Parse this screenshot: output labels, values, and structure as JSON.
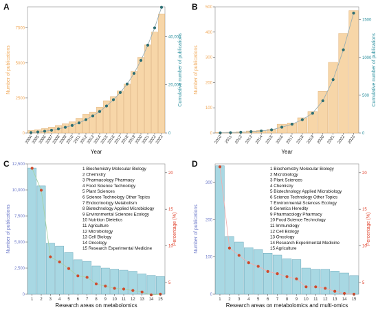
{
  "panels": [
    {
      "id": "A",
      "label": "A",
      "box": "top-left",
      "bar_color": "#f7d6a8",
      "bar_stroke": "#e0b27a",
      "line_color": "#9aaeb3",
      "point_color": "#2d6e73",
      "y_left_color": "#f0a858",
      "y_right_color": "#2a8f9e",
      "ylabel_left": "Number of publications",
      "ylabel_right": "Cumulative number of publications",
      "xlabel": "Year",
      "categories": [
        "2004",
        "2005",
        "2006",
        "2007",
        "2008",
        "2009",
        "2010",
        "2011",
        "2012",
        "2013",
        "2014",
        "2015",
        "2016",
        "2017",
        "2018",
        "2019",
        "2020",
        "2021",
        "2022",
        "2023"
      ],
      "ylim_left": [
        0,
        9000
      ],
      "ylim_right": [
        0,
        52300
      ],
      "yticks_left": [
        0,
        2500,
        5000,
        7500
      ],
      "ytick_labels_left": [
        "0",
        "2500",
        "5000",
        "7500"
      ],
      "yticks_right": [
        0,
        20000,
        40000
      ],
      "ytick_labels_right": [
        "0",
        "20,000",
        "40,000"
      ],
      "bars": [
        180,
        240,
        320,
        420,
        540,
        660,
        800,
        1050,
        1350,
        1500,
        1850,
        2300,
        2600,
        3000,
        3500,
        4400,
        5400,
        6300,
        7200,
        8500
      ],
      "cumulative": [
        180,
        420,
        740,
        1160,
        1700,
        2360,
        3160,
        4210,
        5560,
        7060,
        8910,
        11210,
        13810,
        16810,
        20310,
        24710,
        30110,
        36410,
        43610,
        52110
      ]
    },
    {
      "id": "B",
      "label": "B",
      "box": "top-right",
      "bar_color": "#f7d6a8",
      "bar_stroke": "#e0b27a",
      "line_color": "#9aaeb3",
      "point_color": "#2d6e73",
      "y_left_color": "#f0a858",
      "y_right_color": "#2a8f9e",
      "ylabel_left": "Number of publications",
      "ylabel_right": "Cumulative number of publications",
      "xlabel": "Year",
      "categories": [
        "2010",
        "2011",
        "2012",
        "2013",
        "2014",
        "2015",
        "2016",
        "2017",
        "2018",
        "2019",
        "2020",
        "2021",
        "2022",
        "2023"
      ],
      "ylim_left": [
        0,
        500
      ],
      "ylim_right": [
        0,
        1670
      ],
      "yticks_left": [
        0,
        100,
        200,
        300,
        400,
        500
      ],
      "ytick_labels_left": [
        "0",
        "100",
        "200",
        "300",
        "400",
        "500"
      ],
      "yticks_right": [
        0,
        500,
        1000,
        1500
      ],
      "ytick_labels_right": [
        "0",
        "500",
        "1000",
        "1500"
      ],
      "bars": [
        2,
        3,
        5,
        8,
        10,
        14,
        35,
        40,
        60,
        85,
        165,
        280,
        395,
        485
      ],
      "cumulative": [
        2,
        5,
        10,
        18,
        28,
        42,
        77,
        117,
        177,
        262,
        427,
        707,
        1102,
        1587
      ]
    },
    {
      "id": "C",
      "label": "C",
      "box": "bottom-left",
      "bar_color": "#a8d8e3",
      "bar_stroke": "#6aa6b8",
      "line_color": "#a8d2a8",
      "point_color": "#cf4a2c",
      "y_left_color": "#6a77c8",
      "y_right_color": "#e0402a",
      "ylabel_left": "Number of publications",
      "ylabel_right": "Percentage (%)",
      "xlabel": "Research areas on metabolomics",
      "categories": [
        "1",
        "2",
        "3",
        "4",
        "5",
        "6",
        "7",
        "8",
        "9",
        "10",
        "11",
        "12",
        "13",
        "14",
        "15"
      ],
      "ylim_left": [
        0,
        12500
      ],
      "ylim_right": [
        3.4,
        21.2
      ],
      "yticks_left": [
        0,
        2500,
        5000,
        7500,
        10000,
        12500
      ],
      "ytick_labels_left": [
        "0",
        "2,500",
        "5,000",
        "7,500",
        "10,000",
        "12,500"
      ],
      "yticks_right": [
        5,
        10,
        15,
        20
      ],
      "ytick_labels_right": [
        "5",
        "10",
        "15",
        "20"
      ],
      "bars": [
        12100,
        10400,
        4900,
        4600,
        4000,
        3300,
        3150,
        2700,
        2500,
        2400,
        2300,
        2200,
        1950,
        1800,
        1700
      ],
      "percentages": [
        20.6,
        17.6,
        8.5,
        7.8,
        6.9,
        5.9,
        5.7,
        4.8,
        4.5,
        4.2,
        4.1,
        3.9,
        3.7,
        3.3,
        3.4
      ],
      "legend": [
        "1   Biochemistry Molecular Biology",
        "2   Chemistry",
        "3   Pharmacology Pharmacy",
        "4   Food Science Technology",
        "5   Plant Sciences",
        "6   Science Technology Other Topics",
        "7   Endocrinology Metabolism",
        "8   Biotechnology Applied Microbiology",
        "9   Environmental Sciences Ecology",
        "10  Nutrition Dietetics",
        "11  Agriculture",
        "12  Microbiology",
        "13  Cell Biology",
        "14  Oncology",
        "15  Research Experimental Medicine"
      ]
    },
    {
      "id": "D",
      "label": "D",
      "box": "bottom-right",
      "bar_color": "#a8d8e3",
      "bar_stroke": "#6aa6b8",
      "line_color": "#f0b0b0",
      "point_color": "#cf4a2c",
      "y_left_color": "#6a77c8",
      "y_right_color": "#e0402a",
      "ylabel_left": "Number of publications",
      "ylabel_right": "Percentage (%)",
      "xlabel": "Research areas on metabolomics and multi-omics",
      "categories": [
        "1",
        "2",
        "3",
        "4",
        "5",
        "6",
        "7",
        "8",
        "9",
        "10",
        "11",
        "12",
        "13",
        "14",
        "15"
      ],
      "ylim_left": [
        0,
        350
      ],
      "ylim_right": [
        3.4,
        21.2
      ],
      "yticks_left": [
        0,
        100,
        200,
        300
      ],
      "ytick_labels_left": [
        "0",
        "100",
        "200",
        "300"
      ],
      "yticks_right": [
        5,
        10,
        15,
        20
      ],
      "ytick_labels_right": [
        "5",
        "10",
        "15",
        "20"
      ],
      "bars": [
        345,
        155,
        140,
        125,
        120,
        110,
        105,
        95,
        93,
        70,
        67,
        67,
        62,
        57,
        50
      ],
      "percentages": [
        20.8,
        9.7,
        8.7,
        7.7,
        7.2,
        6.5,
        6.2,
        5.8,
        5.5,
        4.4,
        4.4,
        4.2,
        3.8,
        3.5,
        3.4
      ],
      "legend": [
        "1   Biochemistry Molecular Biology",
        "2   Microbiology",
        "3   Plant Sciences",
        "4   Chemistry",
        "5   Biotechnology Applied Microbiology",
        "6   Science Technology Other Topics",
        "7   Environmental Sciences Ecology",
        "8   Genetics Heredity",
        "9   Pharmacology Pharmacy",
        "10  Food Science Technology",
        "11  Immunology",
        "12  Cell Biology",
        "13  Oncology",
        "14  Research Experimental Medicine",
        "15  Agriculture"
      ]
    }
  ]
}
